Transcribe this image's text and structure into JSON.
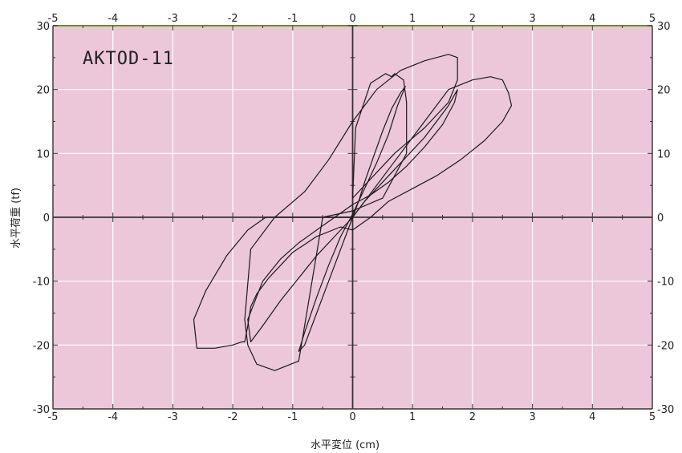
{
  "chart_data": {
    "type": "line",
    "title": "",
    "annotation": "AKTOD-11",
    "xlabel": "水平変位 (cm)",
    "ylabel": "水平荷重 (tf)",
    "xlim": [
      -5,
      5
    ],
    "ylim": [
      -30,
      30
    ],
    "x_ticks": [
      -5,
      -4,
      -3,
      -2,
      -1,
      0,
      1,
      2,
      3,
      4,
      5
    ],
    "y_ticks": [
      -30,
      -20,
      -10,
      0,
      10,
      20,
      30
    ],
    "x_tick_labels": [
      "-5",
      "-4",
      "-3",
      "-2",
      "-1",
      "0",
      "1",
      "2",
      "3",
      "4",
      "5"
    ],
    "y_tick_labels": [
      "-30",
      "-20",
      "-10",
      "0",
      "10",
      "20",
      "30"
    ],
    "grid": true,
    "colors": {
      "plot_background": "#ecc7d9",
      "line": "#1a1a1a",
      "grid": "#ffffff",
      "top_border": "#6b8e23"
    },
    "series": [
      {
        "x": [
          0,
          0.1,
          0.2,
          0.35,
          0.5,
          0.65,
          0.8,
          0.88,
          0.75,
          0.6,
          0.4,
          0.2,
          0.0,
          -0.2,
          -0.4,
          -0.6,
          -0.8,
          -0.9,
          -0.8,
          -0.6,
          -0.4,
          -0.2,
          0.0
        ],
        "y": [
          0,
          2.5,
          5.5,
          9.5,
          13.5,
          17,
          19.5,
          20.5,
          17.5,
          13,
          8.5,
          4.5,
          0.5,
          -3,
          -7.5,
          -12.5,
          -18,
          -21,
          -20,
          -15,
          -10,
          -5,
          0
        ]
      },
      {
        "x": [
          0,
          0.2,
          0.4,
          0.6,
          0.8,
          1.0,
          1.2,
          1.4,
          1.6,
          1.75,
          1.7,
          1.5,
          1.2,
          0.9,
          0.6,
          0.3,
          0.0,
          -0.3,
          -0.6,
          -0.9,
          -1.2,
          -1.5,
          -1.75,
          -1.7,
          -1.5,
          -1.2,
          -0.9,
          -0.6,
          -0.3,
          0.0
        ],
        "y": [
          0,
          2.5,
          4.5,
          6.5,
          8.5,
          10.5,
          12.5,
          15,
          17.5,
          20,
          18,
          14.5,
          11,
          8,
          5.5,
          3.5,
          2,
          0,
          -2,
          -4,
          -6.5,
          -10,
          -16,
          -19.5,
          -17,
          -13,
          -9.5,
          -6,
          -3,
          0
        ]
      },
      {
        "x": [
          -0.5,
          0.0,
          0.5,
          0.9,
          0.9,
          0.85,
          0.7,
          0.65,
          0.55,
          0.3,
          0.05,
          0.0,
          0.3,
          0.7,
          1.2,
          1.6,
          1.75,
          1.75,
          1.6,
          1.2,
          0.8,
          0.4,
          0.0,
          -0.4,
          -0.8,
          -1.3,
          -1.7,
          -1.8,
          -1.75,
          -1.6,
          -1.3,
          -0.9,
          -0.5
        ],
        "y": [
          0,
          1,
          3,
          10,
          18,
          21.5,
          22.5,
          22,
          22.5,
          21,
          14,
          3,
          6,
          10,
          14,
          18,
          21.5,
          25,
          25.5,
          24.5,
          23,
          20,
          15,
          9,
          4,
          0,
          -5,
          -16,
          -20,
          -23,
          -24,
          -22.5,
          0
        ]
      },
      {
        "x": [
          0.0,
          -0.3,
          -0.6,
          -0.9,
          -1.2,
          -1.45,
          -1.75,
          -2.1,
          -2.45,
          -2.65,
          -2.6,
          -2.3,
          -2.0,
          -1.85,
          -1.8,
          -1.75,
          -1.7,
          -1.6,
          -1.4,
          -1.0,
          -0.6,
          -0.2,
          0.0,
          0.3,
          0.6,
          1.0,
          1.4,
          1.8,
          2.2,
          2.5,
          2.65,
          2.6,
          2.5,
          2.3,
          2.0,
          1.6,
          1.2,
          0.8,
          0.4,
          0.0
        ],
        "y": [
          0,
          0,
          0,
          0,
          0,
          0,
          -2,
          -6,
          -11.5,
          -16,
          -20.5,
          -20.5,
          -20,
          -19.5,
          -19.5,
          -17,
          -14,
          -12,
          -9.5,
          -5.5,
          -3,
          -1.5,
          -2,
          0,
          2.5,
          4.5,
          6.5,
          9,
          12,
          15,
          17.5,
          19.5,
          21.5,
          22,
          21.5,
          20,
          15,
          10,
          5,
          0
        ]
      }
    ]
  }
}
